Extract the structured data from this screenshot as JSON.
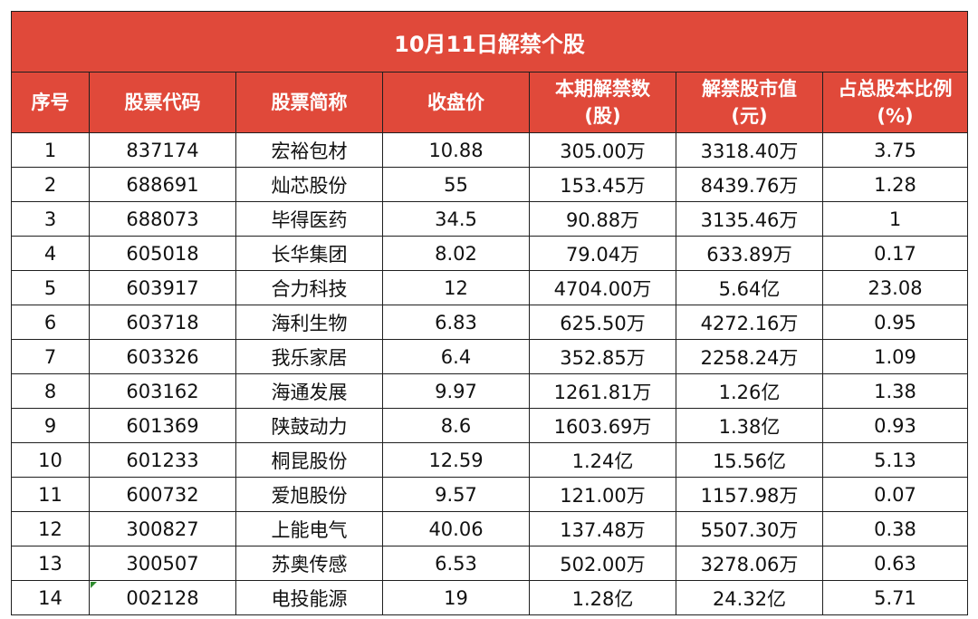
{
  "title": "10月11日解禁个股",
  "columns": [
    {
      "line1": "序号",
      "line2": ""
    },
    {
      "line1": "股票代码",
      "line2": ""
    },
    {
      "line1": "股票简称",
      "line2": ""
    },
    {
      "line1": "收盘价",
      "line2": ""
    },
    {
      "line1": "本期解禁数",
      "line2": "(股)"
    },
    {
      "line1": "解禁股市值",
      "line2": "(元)"
    },
    {
      "line1": "占总股本比例",
      "line2": "(%)"
    }
  ],
  "rows": [
    [
      "1",
      "837174",
      "宏裕包材",
      "10.88",
      "305.00万",
      "3318.40万",
      "3.75"
    ],
    [
      "2",
      "688691",
      "灿芯股份",
      "55",
      "153.45万",
      "8439.76万",
      "1.28"
    ],
    [
      "3",
      "688073",
      "毕得医药",
      "34.5",
      "90.88万",
      "3135.46万",
      "1"
    ],
    [
      "4",
      "605018",
      "长华集团",
      "8.02",
      "79.04万",
      "633.89万",
      "0.17"
    ],
    [
      "5",
      "603917",
      "合力科技",
      "12",
      "4704.00万",
      "5.64亿",
      "23.08"
    ],
    [
      "6",
      "603718",
      "海利生物",
      "6.83",
      "625.50万",
      "4272.16万",
      "0.95"
    ],
    [
      "7",
      "603326",
      "我乐家居",
      "6.4",
      "352.85万",
      "2258.24万",
      "1.09"
    ],
    [
      "8",
      "603162",
      "海通发展",
      "9.97",
      "1261.81万",
      "1.26亿",
      "1.38"
    ],
    [
      "9",
      "601369",
      "陕鼓动力",
      "8.6",
      "1603.69万",
      "1.38亿",
      "0.93"
    ],
    [
      "10",
      "601233",
      "桐昆股份",
      "12.59",
      "1.24亿",
      "15.56亿",
      "5.13"
    ],
    [
      "11",
      "600732",
      "爱旭股份",
      "9.57",
      "121.00万",
      "1157.98万",
      "0.07"
    ],
    [
      "12",
      "300827",
      "上能电气",
      "40.06",
      "137.48万",
      "5507.30万",
      "0.38"
    ],
    [
      "13",
      "300507",
      "苏奥传感",
      "6.53",
      "502.00万",
      "3278.06万",
      "0.63"
    ],
    [
      "14",
      "002128",
      "电投能源",
      "19",
      "1.28亿",
      "24.32亿",
      "5.71"
    ]
  ],
  "colors": {
    "header_bg": "#e0493a",
    "header_text": "#ffffff",
    "border": "#1f1f1f",
    "cell_marker": "#2e8b2e"
  }
}
